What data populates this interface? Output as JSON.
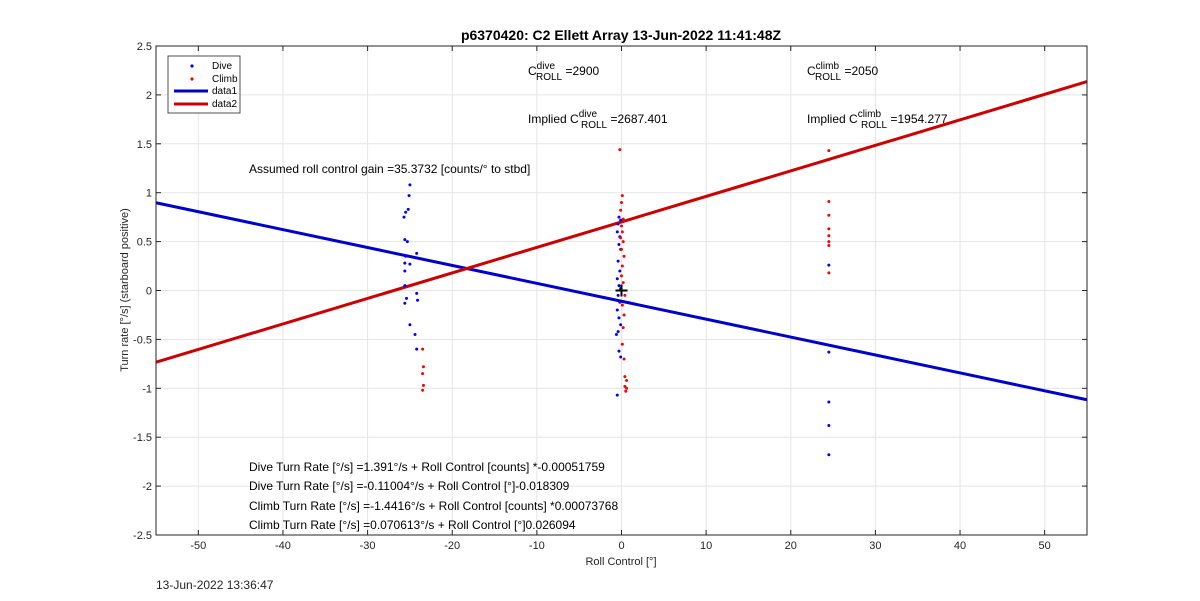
{
  "figure": {
    "title": "p6370420: C2 Ellett Array 13-Jun-2022 11:41:48Z",
    "timestamp": "13-Jun-2022 13:36:47",
    "xlabel": "Roll Control [°]",
    "ylabel": "Turn rate [°/s] (starboard positive)"
  },
  "annotations": {
    "dive_c_roll_main": "C",
    "dive_c_roll_sup": "dive",
    "dive_c_roll_sub": "ROLL",
    "dive_c_roll_val": " =2900",
    "climb_c_roll_main": "C",
    "climb_c_roll_sup": "climb",
    "climb_c_roll_sub": "ROLL",
    "climb_c_roll_val": " =2050",
    "implied_dive_prefix": "Implied C",
    "implied_dive_sup": "dive",
    "implied_dive_sub": "ROLL",
    "implied_dive_val": " =2687.401",
    "implied_climb_prefix": "Implied C",
    "implied_climb_sup": "climb",
    "implied_climb_sub": "ROLL",
    "implied_climb_val": " =1954.277",
    "gain": "Assumed roll control gain =35.3732 [counts/° to stbd]",
    "eq1": "Dive Turn Rate [°/s] =1.391°/s + Roll Control [counts] *-0.00051759",
    "eq2": "Dive Turn Rate [°/s] =-0.11004°/s + Roll Control [°]-0.018309",
    "eq3": "Climb Turn Rate [°/s] =-1.4416°/s + Roll Control [counts] *0.00073768",
    "eq4": "Climb Turn Rate [°/s] =0.070613°/s + Roll Control [°]0.026094"
  },
  "legend": {
    "items": [
      {
        "label": "Dive",
        "kind": "marker",
        "color": "#0000ff"
      },
      {
        "label": "Climb",
        "kind": "marker",
        "color": "#ff0000"
      },
      {
        "label": "data1",
        "kind": "line",
        "color": "#0000cd"
      },
      {
        "label": "data2",
        "kind": "line",
        "color": "#cd0000"
      }
    ]
  },
  "chart_data": {
    "type": "scatter",
    "xlim": [
      -55,
      55
    ],
    "ylim": [
      -2.5,
      2.5
    ],
    "xticks": [
      -50,
      -40,
      -30,
      -20,
      -10,
      0,
      10,
      20,
      30,
      40,
      50
    ],
    "yticks": [
      -2.5,
      -2,
      -1.5,
      -1,
      -0.5,
      0,
      0.5,
      1,
      1.5,
      2,
      2.5
    ],
    "grid": true,
    "legend_position": "top-left",
    "series": [
      {
        "name": "Dive",
        "kind": "scatter",
        "color": "#0000ff",
        "points": [
          [
            -25.0,
            1.08
          ],
          [
            -25.1,
            0.97
          ],
          [
            -25.5,
            0.8
          ],
          [
            -25.2,
            0.83
          ],
          [
            -25.7,
            0.75
          ],
          [
            -25.6,
            0.52
          ],
          [
            -25.3,
            0.5
          ],
          [
            -25.5,
            0.35
          ],
          [
            -25.6,
            0.28
          ],
          [
            -25.6,
            0.2
          ],
          [
            -25.0,
            0.27
          ],
          [
            -24.2,
            0.38
          ],
          [
            -25.6,
            0.05
          ],
          [
            -25.4,
            -0.08
          ],
          [
            -25.6,
            -0.13
          ],
          [
            -24.2,
            -0.03
          ],
          [
            -24.1,
            -0.1
          ],
          [
            -25.0,
            -0.35
          ],
          [
            -24.4,
            -0.45
          ],
          [
            -24.2,
            -0.6
          ],
          [
            -0.3,
            0.75
          ],
          [
            -0.1,
            0.72
          ],
          [
            -0.4,
            0.68
          ],
          [
            -0.5,
            0.6
          ],
          [
            -0.2,
            0.55
          ],
          [
            -0.3,
            0.47
          ],
          [
            -0.1,
            0.42
          ],
          [
            -0.4,
            0.3
          ],
          [
            -0.2,
            0.2
          ],
          [
            -0.5,
            0.12
          ],
          [
            -0.3,
            0.05
          ],
          [
            -0.1,
            0.02
          ],
          [
            -0.4,
            -0.05
          ],
          [
            -0.2,
            -0.12
          ],
          [
            -0.5,
            -0.2
          ],
          [
            -0.3,
            -0.28
          ],
          [
            -0.1,
            -0.35
          ],
          [
            -0.4,
            -0.42
          ],
          [
            -0.6,
            -0.45
          ],
          [
            -0.3,
            -0.62
          ],
          [
            -0.1,
            -0.68
          ],
          [
            -0.5,
            -1.07
          ],
          [
            24.5,
            0.26
          ],
          [
            24.5,
            -0.63
          ],
          [
            24.5,
            -1.14
          ],
          [
            24.5,
            -1.38
          ],
          [
            24.5,
            -1.68
          ]
        ]
      },
      {
        "name": "Climb",
        "kind": "scatter",
        "color": "#ff0000",
        "points": [
          [
            -23.5,
            -0.6
          ],
          [
            -23.4,
            -0.78
          ],
          [
            -23.5,
            -0.85
          ],
          [
            -23.4,
            -0.97
          ],
          [
            -23.5,
            -1.02
          ],
          [
            -0.2,
            1.44
          ],
          [
            0.1,
            0.97
          ],
          [
            0.0,
            0.9
          ],
          [
            -0.1,
            0.82
          ],
          [
            0.2,
            0.73
          ],
          [
            0.0,
            0.66
          ],
          [
            0.1,
            0.6
          ],
          [
            -0.1,
            0.54
          ],
          [
            0.2,
            0.5
          ],
          [
            0.0,
            0.42
          ],
          [
            0.3,
            0.35
          ],
          [
            0.1,
            0.25
          ],
          [
            0.0,
            0.15
          ],
          [
            0.2,
            0.08
          ],
          [
            0.4,
            -0.05
          ],
          [
            0.1,
            -0.15
          ],
          [
            0.3,
            -0.25
          ],
          [
            0.2,
            -0.38
          ],
          [
            0.1,
            -0.55
          ],
          [
            0.3,
            -0.7
          ],
          [
            0.4,
            -0.88
          ],
          [
            0.6,
            -0.92
          ],
          [
            0.4,
            -0.98
          ],
          [
            0.6,
            -1.0
          ],
          [
            0.5,
            -1.03
          ],
          [
            24.5,
            1.43
          ],
          [
            24.5,
            0.91
          ],
          [
            24.5,
            0.77
          ],
          [
            24.5,
            0.63
          ],
          [
            24.5,
            0.56
          ],
          [
            24.5,
            0.5
          ],
          [
            24.5,
            0.46
          ],
          [
            24.5,
            0.18
          ]
        ]
      },
      {
        "name": "data1",
        "kind": "line",
        "color": "#0000cd",
        "points": [
          [
            -55,
            0.897
          ],
          [
            55,
            -1.117
          ]
        ]
      },
      {
        "name": "data2",
        "kind": "line",
        "color": "#cd0000",
        "points": [
          [
            -55,
            -0.733
          ],
          [
            55,
            2.136
          ]
        ]
      }
    ],
    "marker": {
      "type": "plus",
      "x": 0,
      "y": 0,
      "color": "#000000"
    }
  }
}
